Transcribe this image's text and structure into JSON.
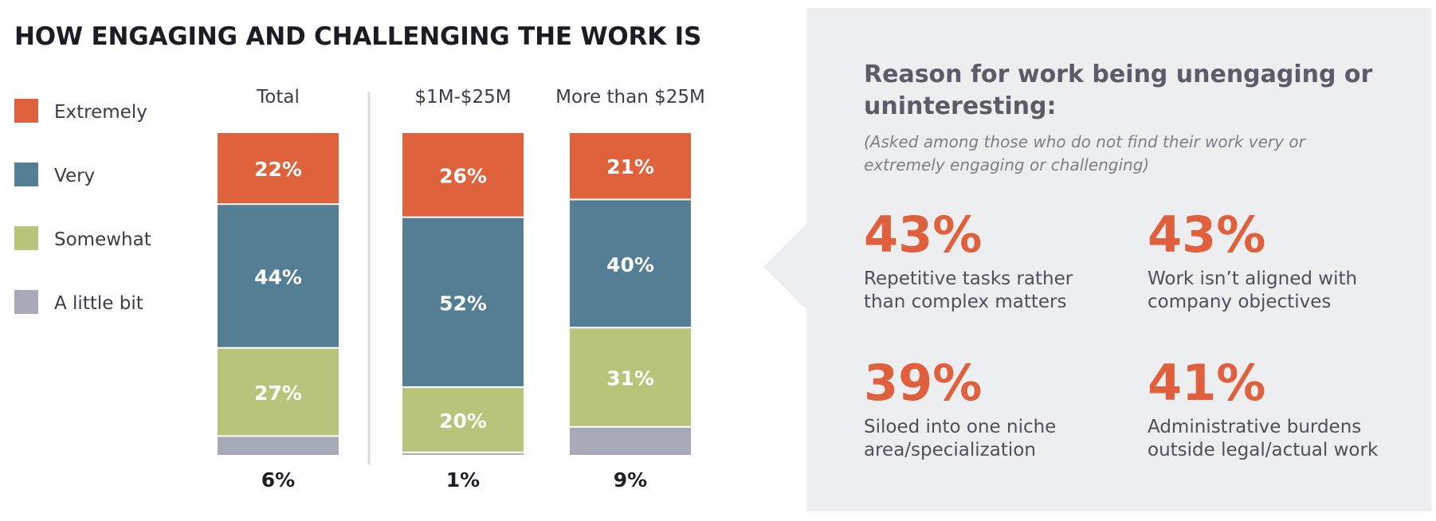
{
  "title": "HOW ENGAGING AND CHALLENGING THE WORK IS",
  "colors": {
    "extremely": "#e0623c",
    "very": "#537e94",
    "somewhat": "#b9c47b",
    "a_little_bit": "#a7aab6",
    "panel_bg": "#eceeef",
    "accent": "#e05f3c"
  },
  "legend": [
    {
      "label": "Extremely",
      "color": "#e0623c"
    },
    {
      "label": "Very",
      "color": "#537e94"
    },
    {
      "label": "Somewhat",
      "color": "#b9c47b"
    },
    {
      "label": "A little bit",
      "color": "#a7aab6"
    }
  ],
  "chart_data": {
    "type": "bar",
    "stacked": true,
    "title": "HOW ENGAGING AND CHALLENGING THE WORK IS",
    "categories": [
      "Total",
      "$1M-$25M",
      "More than $25M"
    ],
    "series": [
      {
        "name": "Extremely",
        "values": [
          22,
          26,
          21
        ],
        "labels": [
          "22%",
          "26%",
          "21%"
        ]
      },
      {
        "name": "Very",
        "values": [
          44,
          52,
          40
        ],
        "labels": [
          "44%",
          "52%",
          "40%"
        ]
      },
      {
        "name": "Somewhat",
        "values": [
          27,
          20,
          31
        ],
        "labels": [
          "27%",
          "20%",
          "31%"
        ]
      },
      {
        "name": "A little bit",
        "values": [
          6,
          1,
          9
        ],
        "labels": [
          "6%",
          "1%",
          "9%"
        ]
      }
    ],
    "xlabel": "",
    "ylabel": "",
    "ylim": [
      0,
      100
    ],
    "grid": false,
    "legend": "left"
  },
  "reasons": {
    "title": "Reason for work being unengaging or uninteresting:",
    "note": "(Asked among those who do not find their work very or extremely engaging or challenging)",
    "stats": [
      {
        "value": "43%",
        "label": "Repetitive tasks rather than complex matters"
      },
      {
        "value": "43%",
        "label": "Work isn’t aligned with company objectives"
      },
      {
        "value": "39%",
        "label": "Siloed into one niche area/specialization"
      },
      {
        "value": "41%",
        "label": "Administrative burdens outside legal/actual work"
      }
    ]
  }
}
